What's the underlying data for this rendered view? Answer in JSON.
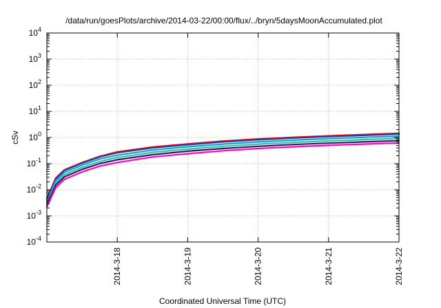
{
  "chart_data": {
    "type": "line",
    "title": "/data/run/goesPlots/archive/2014-03-22/00:00/flux/../bryn/5daysMoonAccumulated.plot",
    "xlabel": "Coordinated Universal Time (UTC)",
    "ylabel": "cSv",
    "yscale": "log",
    "ylim": [
      0.0001,
      10000
    ],
    "xlim": [
      "2014-03-17",
      "2014-03-22"
    ],
    "grid": true,
    "legend": "none",
    "x_ticks": [
      "2014-3-18",
      "2014-3-19",
      "2014-3-20",
      "2014-3-21",
      "2014-3-22"
    ],
    "y_ticks": [
      {
        "base": "10",
        "exp": "-4"
      },
      {
        "base": "10",
        "exp": "-3"
      },
      {
        "base": "10",
        "exp": "-2"
      },
      {
        "base": "10",
        "exp": "-1"
      },
      {
        "base": "10",
        "exp": "0"
      },
      {
        "base": "10",
        "exp": "1"
      },
      {
        "base": "10",
        "exp": "2"
      },
      {
        "base": "10",
        "exp": "3"
      },
      {
        "base": "10",
        "exp": "4"
      }
    ],
    "x": [
      "2014-03-17 00:00",
      "2014-03-17 03:00",
      "2014-03-17 06:00",
      "2014-03-17 12:00",
      "2014-03-17 18:00",
      "2014-03-18 00:00",
      "2014-03-18 12:00",
      "2014-03-19 00:00",
      "2014-03-19 12:00",
      "2014-03-20 00:00",
      "2014-03-20 12:00",
      "2014-03-21 00:00",
      "2014-03-21 12:00",
      "2014-03-22 00:00"
    ],
    "series": [
      {
        "color": "#ff0000",
        "values": [
          0.0045,
          0.028,
          0.058,
          0.11,
          0.19,
          0.28,
          0.43,
          0.57,
          0.73,
          0.88,
          1.02,
          1.16,
          1.3,
          1.45
        ]
      },
      {
        "color": "#1e3f9c",
        "values": [
          0.004,
          0.026,
          0.055,
          0.105,
          0.18,
          0.26,
          0.4,
          0.53,
          0.68,
          0.82,
          0.95,
          1.08,
          1.21,
          1.35
        ]
      },
      {
        "color": "#1a9ad6",
        "values": [
          0.0035,
          0.022,
          0.046,
          0.088,
          0.15,
          0.21,
          0.33,
          0.44,
          0.56,
          0.68,
          0.79,
          0.9,
          1.01,
          1.12
        ]
      },
      {
        "color": "#2ec4a8",
        "values": [
          0.003,
          0.018,
          0.037,
          0.072,
          0.12,
          0.17,
          0.27,
          0.36,
          0.46,
          0.56,
          0.65,
          0.74,
          0.83,
          0.92
        ]
      },
      {
        "color": "#2a1a5e",
        "values": [
          0.0026,
          0.015,
          0.031,
          0.06,
          0.1,
          0.14,
          0.22,
          0.3,
          0.38,
          0.46,
          0.54,
          0.61,
          0.68,
          0.75
        ]
      },
      {
        "color": "#ff00cc",
        "values": [
          0.0022,
          0.012,
          0.025,
          0.048,
          0.08,
          0.11,
          0.18,
          0.24,
          0.31,
          0.38,
          0.44,
          0.5,
          0.56,
          0.62
        ]
      }
    ]
  }
}
